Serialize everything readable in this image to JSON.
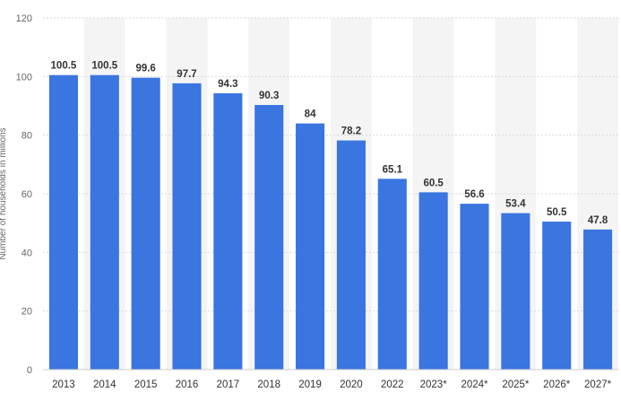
{
  "chart_data": {
    "type": "bar",
    "title": "",
    "xlabel": "",
    "ylabel": "Number of households in millions",
    "categories": [
      "2013",
      "2014",
      "2015",
      "2016",
      "2017",
      "2018",
      "2019",
      "2020",
      "2022",
      "2023*",
      "2024*",
      "2025*",
      "2026*",
      "2027*"
    ],
    "values": [
      100.5,
      100.5,
      99.6,
      97.7,
      94.3,
      90.3,
      84,
      78.2,
      65.1,
      60.5,
      56.6,
      53.4,
      50.5,
      47.8
    ],
    "value_labels": [
      "100.5",
      "100.5",
      "99.6",
      "97.7",
      "94.3",
      "90.3",
      "84",
      "78.2",
      "65.1",
      "60.5",
      "56.6",
      "53.4",
      "50.5",
      "47.8"
    ],
    "ylim": [
      0,
      120
    ],
    "yticks": [
      "0",
      "20",
      "40",
      "60",
      "80",
      "100",
      "120"
    ],
    "grid": true,
    "bar_color": "#3a75e0",
    "band_color": "#f4f4f4",
    "grid_color": "#d9d9d9"
  }
}
